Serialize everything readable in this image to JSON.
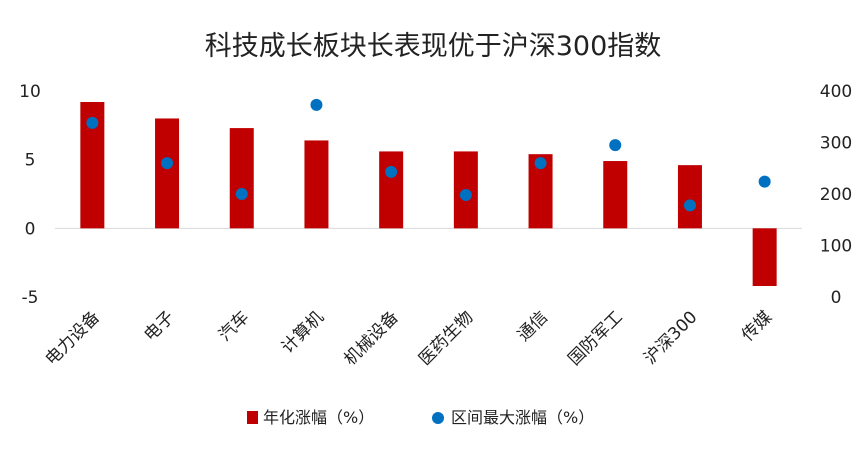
{
  "chart_data": {
    "type": "bar",
    "title": "科技成长板块长表现优于沪深300指数",
    "categories": [
      "电力设备",
      "电子",
      "汽车",
      "计算机",
      "机械设备",
      "医药生物",
      "通信",
      "国防军工",
      "沪深300",
      "传媒"
    ],
    "series": [
      {
        "name": "年化涨幅（%）",
        "type": "bar",
        "axis": "left",
        "color": "#C00000",
        "values": [
          9.2,
          8.0,
          7.3,
          6.4,
          5.6,
          5.6,
          5.4,
          4.9,
          4.6,
          -4.2
        ]
      },
      {
        "name": "区间最大涨幅（%）",
        "type": "scatter",
        "axis": "right",
        "color": "#0070C0",
        "values": [
          338,
          260,
          200,
          373,
          243,
          198,
          260,
          295,
          178,
          224
        ]
      }
    ],
    "y_left": {
      "ylim": [
        -5,
        10
      ],
      "ticks": [
        "10",
        "5",
        "0",
        "-5"
      ]
    },
    "y_right": {
      "ylim": [
        0,
        400
      ],
      "ticks": [
        "400",
        "300",
        "200",
        "100",
        "0"
      ]
    },
    "legend": "bottom",
    "grid": false
  }
}
